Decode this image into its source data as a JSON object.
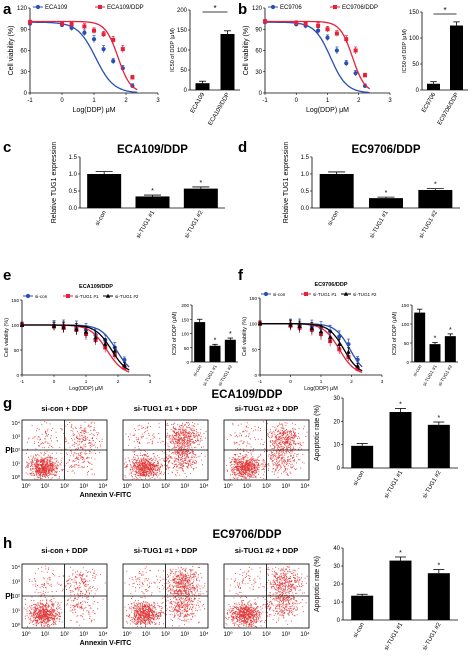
{
  "panel_letters": {
    "a": "a",
    "b": "b",
    "c": "c",
    "d": "d",
    "e": "e",
    "f": "f",
    "g": "g",
    "h": "h"
  },
  "colors": {
    "blue": "#2a4fb5",
    "red": "#e8203a",
    "black": "#000000",
    "dot": "#e23a3a"
  },
  "flow_axis": {
    "x": "Annexin V-FITC",
    "y": "PI",
    "xticks": [
      "10⁰",
      "10¹",
      "10²",
      "10³",
      "10⁴"
    ]
  },
  "chart_data": [
    {
      "id": "a-line",
      "type": "line",
      "xlabel": "Log(DDP) μM",
      "ylabel": "Cell viability (%)",
      "xlim": [
        -1,
        3
      ],
      "ylim": [
        0,
        120
      ],
      "xticks": [
        "-1",
        "0",
        "1",
        "2",
        "3"
      ],
      "yticks": [
        "0",
        "30",
        "60",
        "90",
        "120"
      ],
      "series": [
        {
          "name": "ECA109",
          "color": "#2a4fb5",
          "marker": "circle",
          "x": [
            -1,
            0,
            0.3,
            0.7,
            1,
            1.3,
            1.6,
            1.9,
            2.2
          ],
          "y": [
            98,
            96,
            92,
            85,
            76,
            62,
            45,
            35,
            10
          ],
          "err": [
            3,
            3,
            4,
            4,
            5,
            5,
            4,
            4,
            3
          ]
        },
        {
          "name": "ECA109/DDP",
          "color": "#e8203a",
          "marker": "square",
          "x": [
            -1,
            0,
            0.3,
            0.7,
            1,
            1.3,
            1.6,
            1.9,
            2.2
          ],
          "y": [
            100,
            98,
            97,
            94,
            88,
            83,
            75,
            62,
            22
          ],
          "err": [
            3,
            3,
            3,
            4,
            4,
            4,
            5,
            5,
            3
          ]
        }
      ]
    },
    {
      "id": "a-bar",
      "type": "bar",
      "ylabel": "IC50 of DDP (μM)",
      "ylim": [
        0,
        200
      ],
      "yticks": [
        "0",
        "50",
        "100",
        "150",
        "200"
      ],
      "categories": [
        "ECA109",
        "ECA109/DDP"
      ],
      "values": [
        17,
        140
      ],
      "err": [
        5,
        8
      ],
      "sig": "*"
    },
    {
      "id": "b-line",
      "type": "line",
      "xlabel": "Log(DDP) μM",
      "ylabel": "Cell viability (%)",
      "xlim": [
        -1,
        3
      ],
      "ylim": [
        0,
        120
      ],
      "xticks": [
        "-1",
        "0",
        "1",
        "2",
        "3"
      ],
      "yticks": [
        "0",
        "30",
        "60",
        "90",
        "120"
      ],
      "series": [
        {
          "name": "EC9706",
          "color": "#2a4fb5",
          "marker": "circle",
          "x": [
            -1,
            0,
            0.3,
            0.7,
            1,
            1.3,
            1.6,
            1.9,
            2.2
          ],
          "y": [
            100,
            97,
            95,
            88,
            78,
            60,
            42,
            28,
            10
          ],
          "err": [
            3,
            3,
            4,
            4,
            4,
            5,
            4,
            4,
            3
          ]
        },
        {
          "name": "EC9706/DDP",
          "color": "#e8203a",
          "marker": "square",
          "x": [
            -1,
            0,
            0.3,
            0.7,
            1,
            1.3,
            1.6,
            1.9,
            2.2
          ],
          "y": [
            101,
            99,
            98,
            95,
            90,
            84,
            76,
            60,
            25
          ],
          "err": [
            3,
            3,
            3,
            4,
            4,
            4,
            5,
            5,
            3
          ]
        }
      ]
    },
    {
      "id": "b-bar",
      "type": "bar",
      "ylabel": "IC50 of DDP (μM)",
      "ylim": [
        0,
        150
      ],
      "yticks": [
        "0",
        "50",
        "100",
        "150"
      ],
      "categories": [
        "EC9706",
        "EC9706/DDP"
      ],
      "values": [
        12,
        124
      ],
      "err": [
        4,
        7
      ],
      "sig": "*"
    },
    {
      "id": "c-bar",
      "type": "bar",
      "title": "ECA109/DDP",
      "ylabel": "Relative TUG1 expression",
      "ylim": [
        0,
        1.5
      ],
      "yticks": [
        "0.0",
        "0.5",
        "1.0",
        "1.5"
      ],
      "categories": [
        "si-con",
        "si-TUG1 #1",
        "si-TUG1 #2"
      ],
      "values": [
        1.0,
        0.34,
        0.57
      ],
      "err": [
        0.07,
        0.04,
        0.05
      ],
      "sig": [
        "",
        "*",
        "*"
      ]
    },
    {
      "id": "d-bar",
      "type": "bar",
      "title": "EC9706/DDP",
      "ylabel": "Relative TUG1 expression",
      "ylim": [
        0,
        1.5
      ],
      "yticks": [
        "0.0",
        "0.5",
        "1.0",
        "1.5"
      ],
      "categories": [
        "si-con",
        "si-TUG1 #1",
        "si-TUG1 #2"
      ],
      "values": [
        1.0,
        0.29,
        0.53
      ],
      "err": [
        0.06,
        0.03,
        0.04
      ],
      "sig": [
        "",
        "*",
        "*"
      ]
    },
    {
      "id": "e-line",
      "type": "line",
      "title": "ECA109/DDP",
      "xlabel": "Log(DDP) μM",
      "ylabel": "Cell viability (%)",
      "xlim": [
        -1,
        3
      ],
      "ylim": [
        0,
        150
      ],
      "xticks": [
        "-1",
        "0",
        "1",
        "2",
        "3"
      ],
      "yticks": [
        "0",
        "50",
        "100",
        "150"
      ],
      "series": [
        {
          "name": "si-con",
          "color": "#2a4fb5",
          "marker": "circle",
          "x": [
            -1,
            0,
            0.3,
            0.7,
            1,
            1.3,
            1.6,
            1.9,
            2.2
          ],
          "y": [
            100,
            99,
            98,
            96,
            90,
            80,
            70,
            55,
            30
          ],
          "err": [
            6,
            10,
            12,
            12,
            13,
            12,
            10,
            10,
            6
          ]
        },
        {
          "name": "si-TUG1 #1",
          "color": "#e8203a",
          "marker": "square",
          "x": [
            -1,
            0,
            0.3,
            0.7,
            1,
            1.3,
            1.6,
            1.9,
            2.2
          ],
          "y": [
            100,
            97,
            94,
            90,
            82,
            70,
            55,
            40,
            15
          ],
          "err": [
            5,
            8,
            10,
            10,
            12,
            10,
            10,
            8,
            5
          ]
        },
        {
          "name": "si-TUG1 #2",
          "color": "#000000",
          "marker": "triangle",
          "x": [
            -1,
            0,
            0.3,
            0.7,
            1,
            1.3,
            1.6,
            1.9,
            2.2
          ],
          "y": [
            100,
            98,
            96,
            92,
            86,
            75,
            62,
            48,
            20
          ],
          "err": [
            5,
            8,
            10,
            11,
            12,
            11,
            10,
            8,
            5
          ]
        }
      ]
    },
    {
      "id": "e-bar",
      "type": "bar",
      "ylabel": "IC50 of DDP (μM)",
      "ylim": [
        0,
        200
      ],
      "yticks": [
        "0",
        "50",
        "100",
        "150",
        "200"
      ],
      "categories": [
        "si-con",
        "si-TUG1 #1",
        "si-TUG1 #2"
      ],
      "values": [
        140,
        57,
        78
      ],
      "err": [
        10,
        5,
        6
      ],
      "sig": [
        "",
        "*",
        "*"
      ]
    },
    {
      "id": "f-line",
      "type": "line",
      "title": "EC9706/DDP",
      "xlabel": "Log(DDP) μM",
      "ylabel": "Cell viability (%)",
      "xlim": [
        -1,
        3
      ],
      "ylim": [
        0,
        150
      ],
      "xticks": [
        "-1",
        "0",
        "1",
        "2",
        "3"
      ],
      "yticks": [
        "0",
        "50",
        "100",
        "150"
      ],
      "series": [
        {
          "name": "si-con",
          "color": "#2a4fb5",
          "marker": "circle",
          "x": [
            -1,
            0,
            0.3,
            0.7,
            1,
            1.3,
            1.6,
            1.9,
            2.2
          ],
          "y": [
            100,
            99,
            97,
            95,
            92,
            85,
            75,
            60,
            30
          ],
          "err": [
            5,
            10,
            12,
            12,
            12,
            12,
            11,
            10,
            6
          ]
        },
        {
          "name": "si-TUG1 #1",
          "color": "#e8203a",
          "marker": "square",
          "x": [
            -1,
            0,
            0.3,
            0.7,
            1,
            1.3,
            1.6,
            1.9,
            2.2
          ],
          "y": [
            100,
            96,
            92,
            88,
            80,
            66,
            50,
            35,
            12
          ],
          "err": [
            5,
            9,
            10,
            11,
            12,
            10,
            9,
            8,
            5
          ]
        },
        {
          "name": "si-TUG1 #2",
          "color": "#000000",
          "marker": "triangle",
          "x": [
            -1,
            0,
            0.3,
            0.7,
            1,
            1.3,
            1.6,
            1.9,
            2.2
          ],
          "y": [
            100,
            98,
            95,
            91,
            85,
            74,
            60,
            45,
            18
          ],
          "err": [
            5,
            9,
            10,
            11,
            12,
            11,
            10,
            8,
            5
          ]
        }
      ]
    },
    {
      "id": "f-bar",
      "type": "bar",
      "ylabel": "IC50 of DDP (μM)",
      "ylim": [
        0,
        150
      ],
      "yticks": [
        "0",
        "50",
        "100",
        "150"
      ],
      "categories": [
        "si-con",
        "si-TUG1 #1",
        "si-TUG1 #2"
      ],
      "values": [
        130,
        47,
        68
      ],
      "err": [
        9,
        4,
        6
      ],
      "sig": [
        "",
        "*",
        "*"
      ]
    },
    {
      "id": "g-bar",
      "type": "bar",
      "title": "ECA109/DDP",
      "ylabel": "Apoptotic rate (%)",
      "ylim": [
        0,
        30
      ],
      "yticks": [
        "0",
        "10",
        "20",
        "30"
      ],
      "categories": [
        "si-con",
        "si-TUG1 #1",
        "si-TUG1 #2"
      ],
      "values": [
        9.5,
        24,
        18.5
      ],
      "err": [
        1,
        1.5,
        1.2
      ],
      "sig": [
        "",
        "*",
        "*"
      ]
    },
    {
      "id": "h-bar",
      "type": "bar",
      "title": "EC9706/DDP",
      "ylabel": "Apoptotic rate (%)",
      "ylim": [
        0,
        40
      ],
      "yticks": [
        "0",
        "10",
        "20",
        "30",
        "40"
      ],
      "categories": [
        "si-con",
        "si-TUG1 #1",
        "si-TUG1 #2"
      ],
      "values": [
        13.5,
        33,
        26
      ],
      "err": [
        0.8,
        2,
        2
      ],
      "sig": [
        "",
        "*",
        "*"
      ]
    }
  ],
  "flow_panels": [
    {
      "id": "g1",
      "label": "si-con + DDP"
    },
    {
      "id": "g2",
      "label": "si-TUG1 #1 + DDP"
    },
    {
      "id": "g3",
      "label": "si-TUG1 #2 + DDP"
    },
    {
      "id": "h1",
      "label": "si-con + DDP"
    },
    {
      "id": "h2",
      "label": "si-TUG1 #1 + DDP"
    },
    {
      "id": "h3",
      "label": "si-TUG1 #2 + DDP"
    }
  ]
}
